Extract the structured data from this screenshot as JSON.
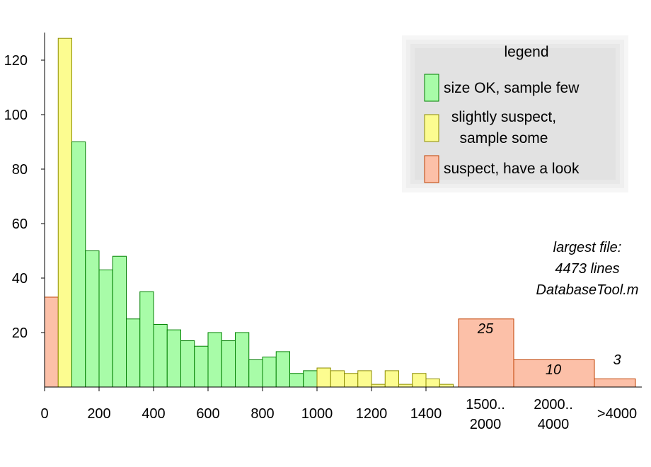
{
  "chart_data": {
    "type": "bar",
    "xlabel": "",
    "ylabel": "",
    "ylim": [
      0,
      130
    ],
    "y_ticks": [
      20,
      40,
      60,
      80,
      100,
      120
    ],
    "x_ticks": [
      "0",
      "200",
      "400",
      "600",
      "800",
      "1000",
      "1200",
      "1400"
    ],
    "bin_width": 50,
    "colors": {
      "green": "#a8fca8",
      "yellow": "#fcfc90",
      "red": "#fcc0a8",
      "green_edge": "#008000",
      "yellow_edge": "#8c8c00",
      "red_edge": "#c04000"
    },
    "bins": [
      {
        "x0": 0,
        "value": 33,
        "category": "red"
      },
      {
        "x0": 50,
        "value": 128,
        "category": "yellow"
      },
      {
        "x0": 100,
        "value": 90,
        "category": "green"
      },
      {
        "x0": 150,
        "value": 50,
        "category": "green"
      },
      {
        "x0": 200,
        "value": 43,
        "category": "green"
      },
      {
        "x0": 250,
        "value": 48,
        "category": "green"
      },
      {
        "x0": 300,
        "value": 25,
        "category": "green"
      },
      {
        "x0": 350,
        "value": 35,
        "category": "green"
      },
      {
        "x0": 400,
        "value": 23,
        "category": "green"
      },
      {
        "x0": 450,
        "value": 21,
        "category": "green"
      },
      {
        "x0": 500,
        "value": 17,
        "category": "green"
      },
      {
        "x0": 550,
        "value": 15,
        "category": "green"
      },
      {
        "x0": 600,
        "value": 20,
        "category": "green"
      },
      {
        "x0": 650,
        "value": 17,
        "category": "green"
      },
      {
        "x0": 700,
        "value": 20,
        "category": "green"
      },
      {
        "x0": 750,
        "value": 10,
        "category": "green"
      },
      {
        "x0": 800,
        "value": 11,
        "category": "green"
      },
      {
        "x0": 850,
        "value": 13,
        "category": "green"
      },
      {
        "x0": 900,
        "value": 5,
        "category": "green"
      },
      {
        "x0": 950,
        "value": 6,
        "category": "green"
      },
      {
        "x0": 1000,
        "value": 7,
        "category": "yellow"
      },
      {
        "x0": 1050,
        "value": 6,
        "category": "yellow"
      },
      {
        "x0": 1100,
        "value": 5,
        "category": "yellow"
      },
      {
        "x0": 1150,
        "value": 6,
        "category": "yellow"
      },
      {
        "x0": 1200,
        "value": 1,
        "category": "yellow"
      },
      {
        "x0": 1250,
        "value": 6,
        "category": "yellow"
      },
      {
        "x0": 1300,
        "value": 1,
        "category": "yellow"
      },
      {
        "x0": 1350,
        "value": 5,
        "category": "yellow"
      },
      {
        "x0": 1400,
        "value": 3,
        "category": "yellow"
      },
      {
        "x0": 1450,
        "value": 1,
        "category": "yellow"
      }
    ],
    "big_bins": [
      {
        "label_lines": [
          "1500..",
          "2000"
        ],
        "value": 25,
        "value_label": "25",
        "category": "red"
      },
      {
        "label_lines": [
          "2000..",
          "4000"
        ],
        "value": 10,
        "value_label": "10",
        "category": "red"
      },
      {
        "label_lines": [
          ">4000"
        ],
        "value": 3,
        "value_label": "3",
        "category": "red"
      }
    ],
    "legend": {
      "title": "legend",
      "position": "top-right",
      "entries": [
        {
          "lines": [
            "size OK, sample few"
          ],
          "category": "green"
        },
        {
          "lines": [
            "slightly suspect,",
            "sample some"
          ],
          "category": "yellow"
        },
        {
          "lines": [
            "suspect, have a look"
          ],
          "category": "red"
        }
      ]
    },
    "annotation": {
      "lines": [
        "largest file:",
        "4473 lines",
        "DatabaseTool.m"
      ]
    }
  }
}
